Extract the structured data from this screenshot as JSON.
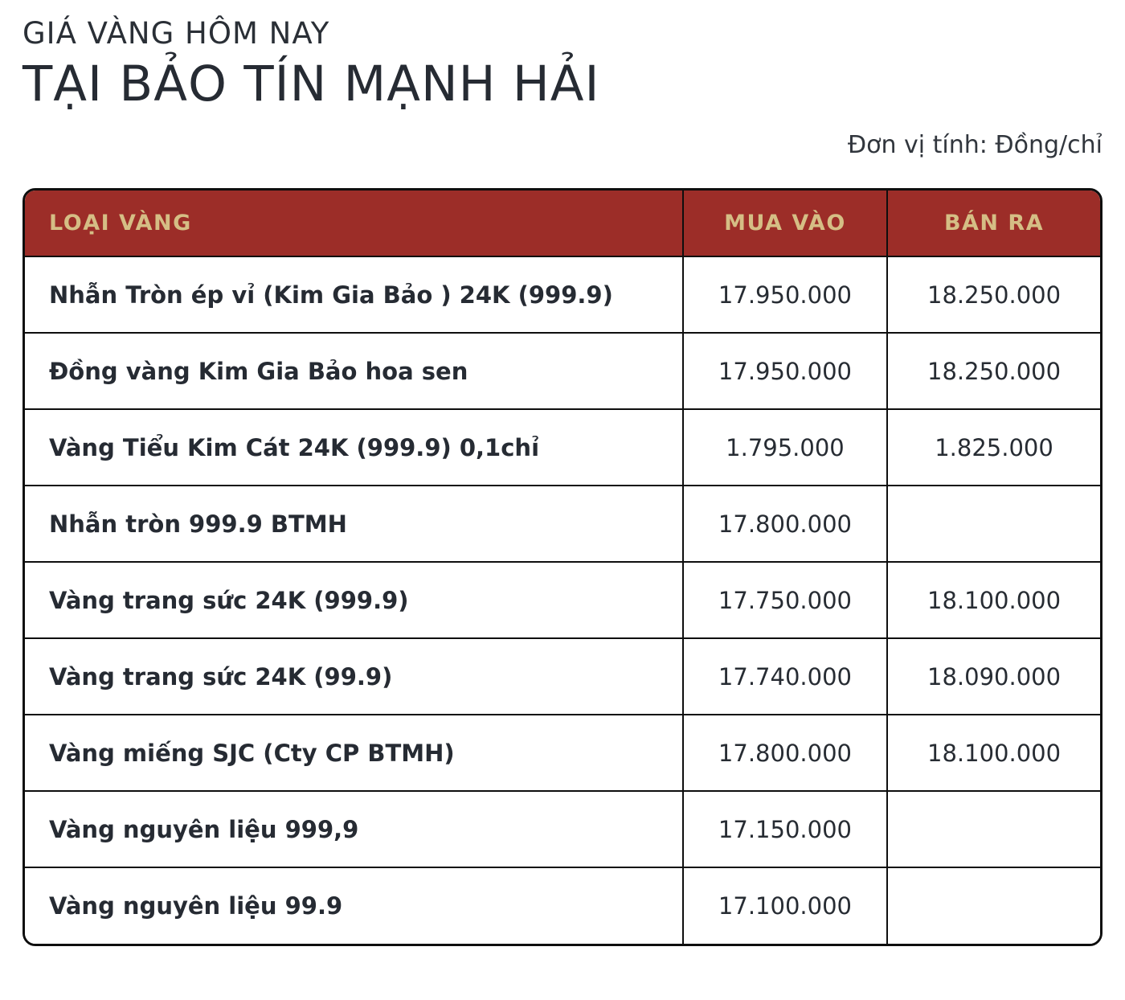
{
  "page": {
    "title_line1": "GIÁ VÀNG HÔM NAY",
    "title_line2": "TẠI BẢO TÍN MẠNH HẢI",
    "unit_note": "Đơn vị tính: Đồng/chỉ"
  },
  "colors": {
    "header_bg": "#9C2D28",
    "header_text": "#D5BE85",
    "body_text": "#262B33",
    "border": "#0E0E0E",
    "background": "#FFFFFF"
  },
  "table": {
    "columns": [
      "LOẠI VÀNG",
      "MUA VÀO",
      "BÁN RA"
    ],
    "rows": [
      {
        "name": "Nhẫn Tròn ép vỉ (Kim Gia Bảo ) 24K (999.9)",
        "buy": "17.950.000",
        "sell": "18.250.000"
      },
      {
        "name": "Đồng vàng Kim Gia Bảo hoa sen",
        "buy": "17.950.000",
        "sell": "18.250.000"
      },
      {
        "name": "Vàng Tiểu Kim Cát 24K (999.9) 0,1chỉ",
        "buy": "1.795.000",
        "sell": "1.825.000"
      },
      {
        "name": "Nhẫn tròn 999.9 BTMH",
        "buy": "17.800.000",
        "sell": ""
      },
      {
        "name": "Vàng trang sức 24K (999.9)",
        "buy": "17.750.000",
        "sell": "18.100.000"
      },
      {
        "name": "Vàng trang sức 24K (99.9)",
        "buy": "17.740.000",
        "sell": "18.090.000"
      },
      {
        "name": "Vàng miếng SJC (Cty CP BTMH)",
        "buy": "17.800.000",
        "sell": "18.100.000"
      },
      {
        "name": "Vàng nguyên liệu 999,9",
        "buy": "17.150.000",
        "sell": ""
      },
      {
        "name": "Vàng nguyên liệu 99.9",
        "buy": "17.100.000",
        "sell": ""
      }
    ]
  }
}
